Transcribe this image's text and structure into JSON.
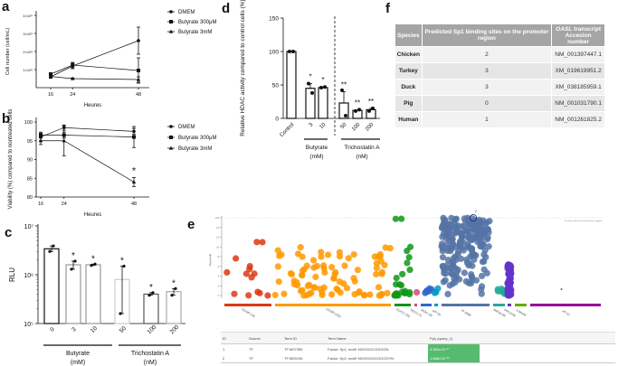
{
  "panel_labels": {
    "a": "a",
    "b": "b",
    "c": "c",
    "d": "d",
    "e": "e",
    "f": "f"
  },
  "chart_data": [
    {
      "id": "a",
      "type": "line",
      "xlabel": "Heures",
      "ylabel": "Cell number (cell/mL)",
      "x": [
        16,
        24,
        48
      ],
      "xticks": [
        "16",
        "24",
        "48"
      ],
      "yticks": [
        "1×10⁶",
        "2×10⁶",
        "3×10⁶",
        "4×10⁶"
      ],
      "ylim": [
        0,
        4000000
      ],
      "series": [
        {
          "name": "DMEM",
          "marker": "circle",
          "values": [
            600000,
            1200000,
            2600000
          ],
          "err": [
            80000,
            150000,
            750000
          ]
        },
        {
          "name": "Butyrate 300μM",
          "marker": "square",
          "values": [
            750000,
            1250000,
            950000
          ],
          "err": [
            80000,
            150000,
            700000
          ]
        },
        {
          "name": "Butyrate 3mM",
          "marker": "triangle",
          "values": [
            620000,
            500000,
            450000
          ],
          "err": [
            50000,
            40000,
            150000
          ]
        }
      ],
      "legend": "right"
    },
    {
      "id": "b",
      "type": "line",
      "xlabel": "Heures",
      "ylabel": "Viability (%) compared to nontreated cells",
      "x": [
        16,
        24,
        48
      ],
      "xticks": [
        "16",
        "24",
        "48"
      ],
      "yticks": [
        "80",
        "85",
        "90",
        "95",
        "100"
      ],
      "ylim": [
        80,
        100
      ],
      "series": [
        {
          "name": "DMEM",
          "marker": "circle",
          "values": [
            96,
            98.5,
            97.5
          ],
          "err": [
            1,
            0.7,
            0.8
          ]
        },
        {
          "name": "Butyrate 300μM",
          "marker": "square",
          "values": [
            96.5,
            96.5,
            96
          ],
          "err": [
            0.8,
            0.8,
            2.8
          ]
        },
        {
          "name": "Butyrate 3mM",
          "marker": "triangle",
          "values": [
            95,
            95,
            84
          ],
          "err": [
            1,
            4,
            1.2
          ]
        }
      ],
      "annotations": [
        {
          "x": 48,
          "text": "*"
        }
      ],
      "legend": "right"
    },
    {
      "id": "c",
      "type": "bar",
      "ylabel": "RLU",
      "yscale": "log",
      "ylim": [
        100000,
        10000000
      ],
      "yticks": [
        "10⁵",
        "10⁶",
        "10⁷"
      ],
      "categories": [
        "0",
        "3",
        "10",
        "50",
        "100",
        "200"
      ],
      "values": [
        3400000,
        1600000,
        1600000,
        800000,
        400000,
        450000
      ],
      "low": [
        3000000,
        1300000,
        1550000,
        160000,
        380000,
        380000
      ],
      "high": [
        3900000,
        1900000,
        1650000,
        1500000,
        430000,
        520000
      ],
      "sig": [
        "",
        "*",
        "*",
        "*",
        "*",
        "*"
      ],
      "groups": [
        {
          "name": "Butyrate",
          "unit": "(mM)"
        },
        {
          "name": "Trichostatin  A",
          "unit": "(nM)"
        }
      ]
    },
    {
      "id": "d",
      "type": "bar",
      "ylabel": "Relative HDAC activity compared to control cells (%)",
      "ylim": [
        0,
        150
      ],
      "yticks": [
        "0",
        "50",
        "100",
        "150"
      ],
      "categories": [
        "Control",
        "3",
        "10",
        "50",
        "100",
        "200"
      ],
      "values": [
        100,
        45,
        46,
        23,
        12,
        13
      ],
      "points": [
        [
          100,
          100
        ],
        [
          52,
          38
        ],
        [
          46,
          47
        ],
        [
          42,
          4
        ],
        [
          11,
          13
        ],
        [
          11,
          15
        ]
      ],
      "high": [
        100,
        52,
        47,
        40,
        13,
        15
      ],
      "sig": [
        "",
        "*",
        "*",
        "**",
        "**",
        "**"
      ],
      "groups": [
        {
          "name": "Butyrate",
          "unit": "(mM)"
        },
        {
          "name": "Trichostatin  A",
          "unit": "(nM)"
        }
      ]
    },
    {
      "id": "e",
      "type": "scatter",
      "ylabel": "-log₁₀(pₐdⱼ)",
      "ylim": [
        0,
        16
      ],
      "yticks": [
        "0",
        "2",
        "4",
        "6",
        "8",
        "10",
        "12",
        "14",
        "≥16"
      ],
      "threshold_note": "16 values above this threshold are capped",
      "highlight_label": "2",
      "sources": [
        {
          "label": "GO:MF (14)",
          "count": 14,
          "color": "#dc3912"
        },
        {
          "label": "GO:BP (152)",
          "count": 152,
          "color": "#ff9900"
        },
        {
          "label": "GO:CC (25)",
          "count": 25,
          "color": "#109618"
        },
        {
          "label": "KEGG (1)",
          "count": 1,
          "color": "#dd4477"
        },
        {
          "label": "REAC (8)",
          "count": 8,
          "color": "#3366cc"
        },
        {
          "label": "WP (3)",
          "count": 3,
          "color": "#0099c6"
        },
        {
          "label": "TF (568)",
          "count": 568,
          "color": "#5574a6"
        },
        {
          "label": "MIRNA (8)",
          "count": 8,
          "color": "#22aa99"
        },
        {
          "label": "HPA (105)",
          "count": 105,
          "color": "#6633cc"
        },
        {
          "label": "CORUM",
          "count": 0,
          "color": "#66aa00"
        },
        {
          "label": "HP (1)",
          "count": 1,
          "color": "#990099"
        }
      ]
    }
  ],
  "table_e": {
    "headers": [
      "ID",
      "Source",
      "Term ID",
      "Term Name",
      "Pₐdⱼ (query_1)"
    ],
    "rows": [
      [
        "1",
        "TF",
        "TF:M07395",
        "Factor: Sp1; motif: NGGGGCGGGGN",
        "3.364×10⁻¹⁷"
      ],
      [
        "2",
        "TF",
        "TF:M00196",
        "Factor: Sp1; motif: NGGGGGCGGGGYN",
        "1.868×10⁻¹⁶"
      ]
    ]
  },
  "table_f": {
    "headers": [
      "Species",
      "Predicted Sp1 binding sites on the promoter region",
      "OASL transcript Accesion number"
    ],
    "rows": [
      [
        "Chicken",
        "2",
        "NM_001397447.1"
      ],
      [
        "Turkey",
        "3",
        "XM_019619951.2"
      ],
      [
        "Duck",
        "3",
        "XM_038185959.1"
      ],
      [
        "Pig",
        "0",
        "NM_001031790.1"
      ],
      [
        "Human",
        "1",
        "NM_001261825.2"
      ]
    ]
  }
}
